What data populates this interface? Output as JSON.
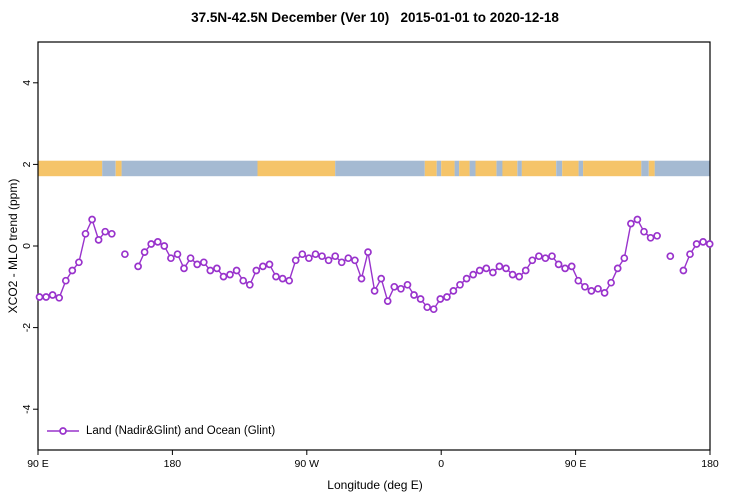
{
  "chart_data": {
    "type": "line",
    "title": "37.5N-42.5N December (Ver 10)   2015-01-01 to 2020-12-18",
    "xlabel": "Longitude (deg E)",
    "ylabel": "XCO2 - MLO trend (ppm)",
    "legend": [
      "Land (Nadir&Glint) and Ocean (Glint)"
    ],
    "series_color": "#9933cc",
    "marker": "open-circle",
    "grid": false,
    "legend_position": "bottom-left-inside",
    "xlim": [
      90,
      540
    ],
    "ylim": [
      -5,
      5
    ],
    "xticks": [
      {
        "value": 90,
        "label": "90 E"
      },
      {
        "value": 180,
        "label": "180"
      },
      {
        "value": 270,
        "label": "90 W"
      },
      {
        "value": 360,
        "label": "0"
      },
      {
        "value": 450,
        "label": "90 E"
      },
      {
        "value": 540,
        "label": "180"
      }
    ],
    "yticks": [
      {
        "value": -4,
        "label": "-4"
      },
      {
        "value": -2,
        "label": "-2"
      },
      {
        "value": 0,
        "label": "0"
      },
      {
        "value": 2,
        "label": "2"
      },
      {
        "value": 4,
        "label": "4"
      }
    ],
    "land_ocean_band": {
      "y_center": 1.9,
      "height": 0.38,
      "land_color": "#f5c469",
      "ocean_color": "#a5bad2",
      "segments": [
        [
          90,
          133,
          "land"
        ],
        [
          133,
          142,
          "ocean"
        ],
        [
          142,
          146,
          "land"
        ],
        [
          146,
          237,
          "ocean"
        ],
        [
          237,
          289,
          "land"
        ],
        [
          289,
          349,
          "ocean"
        ],
        [
          349,
          357,
          "land"
        ],
        [
          357,
          360,
          "ocean"
        ],
        [
          360,
          369,
          "land"
        ],
        [
          369,
          372,
          "ocean"
        ],
        [
          372,
          379,
          "land"
        ],
        [
          379,
          383,
          "ocean"
        ],
        [
          383,
          397,
          "land"
        ],
        [
          397,
          401,
          "ocean"
        ],
        [
          401,
          411,
          "land"
        ],
        [
          411,
          414,
          "ocean"
        ],
        [
          414,
          437,
          "land"
        ],
        [
          437,
          441,
          "ocean"
        ],
        [
          441,
          452,
          "land"
        ],
        [
          452,
          455,
          "ocean"
        ],
        [
          455,
          494,
          "land"
        ],
        [
          494,
          499,
          "ocean"
        ],
        [
          499,
          503,
          "land"
        ],
        [
          503,
          540,
          "ocean"
        ]
      ]
    },
    "points": [
      [
        91,
        -1.25
      ],
      [
        95.4,
        -1.25
      ],
      [
        99.8,
        -1.2
      ],
      [
        104.2,
        -1.27
      ],
      [
        108.6,
        -0.85
      ],
      [
        113,
        -0.6
      ],
      [
        117.4,
        -0.4
      ],
      [
        121.8,
        0.3
      ],
      [
        126.2,
        0.65
      ],
      [
        130.6,
        0.15
      ],
      [
        135,
        0.35
      ],
      [
        139.4,
        0.3
      ],
      [
        143.8,
        null
      ],
      [
        148.2,
        -0.2
      ],
      [
        152.6,
        null
      ],
      [
        157,
        -0.5
      ],
      [
        161.4,
        -0.15
      ],
      [
        165.8,
        0.05
      ],
      [
        170.2,
        0.1
      ],
      [
        174.6,
        0
      ],
      [
        179,
        -0.3
      ],
      [
        183.4,
        -0.2
      ],
      [
        187.8,
        -0.55
      ],
      [
        192.2,
        -0.3
      ],
      [
        196.6,
        -0.45
      ],
      [
        201,
        -0.4
      ],
      [
        205.4,
        -0.6
      ],
      [
        209.8,
        -0.55
      ],
      [
        214.2,
        -0.75
      ],
      [
        218.6,
        -0.7
      ],
      [
        223,
        -0.6
      ],
      [
        227.4,
        -0.85
      ],
      [
        231.8,
        -0.95
      ],
      [
        236.2,
        -0.6
      ],
      [
        240.6,
        -0.5
      ],
      [
        245,
        -0.45
      ],
      [
        249.4,
        -0.75
      ],
      [
        253.8,
        -0.8
      ],
      [
        258.2,
        -0.85
      ],
      [
        262.6,
        -0.35
      ],
      [
        267,
        -0.2
      ],
      [
        271.4,
        -0.3
      ],
      [
        275.8,
        -0.2
      ],
      [
        280.2,
        -0.25
      ],
      [
        284.6,
        -0.35
      ],
      [
        289,
        -0.25
      ],
      [
        293.4,
        -0.4
      ],
      [
        297.8,
        -0.3
      ],
      [
        302.2,
        -0.35
      ],
      [
        306.6,
        -0.8
      ],
      [
        311,
        -0.15
      ],
      [
        315.4,
        -1.1
      ],
      [
        319.8,
        -0.8
      ],
      [
        324.2,
        -1.35
      ],
      [
        328.6,
        -1
      ],
      [
        333,
        -1.05
      ],
      [
        337.4,
        -0.95
      ],
      [
        341.8,
        -1.2
      ],
      [
        346.2,
        -1.3
      ],
      [
        350.6,
        -1.5
      ],
      [
        355,
        -1.55
      ],
      [
        359.4,
        -1.3
      ],
      [
        363.8,
        -1.25
      ],
      [
        368.2,
        -1.1
      ],
      [
        372.6,
        -0.95
      ],
      [
        377,
        -0.8
      ],
      [
        381.4,
        -0.7
      ],
      [
        385.8,
        -0.6
      ],
      [
        390.2,
        -0.55
      ],
      [
        394.6,
        -0.65
      ],
      [
        399,
        -0.5
      ],
      [
        403.4,
        -0.55
      ],
      [
        407.8,
        -0.7
      ],
      [
        412.2,
        -0.75
      ],
      [
        416.6,
        -0.6
      ],
      [
        421,
        -0.35
      ],
      [
        425.4,
        -0.25
      ],
      [
        429.8,
        -0.3
      ],
      [
        434.2,
        -0.25
      ],
      [
        438.6,
        -0.45
      ],
      [
        443,
        -0.55
      ],
      [
        447.4,
        -0.5
      ],
      [
        451.8,
        -0.85
      ],
      [
        456.2,
        -1
      ],
      [
        460.6,
        -1.1
      ],
      [
        465,
        -1.05
      ],
      [
        469.4,
        -1.15
      ],
      [
        473.8,
        -0.9
      ],
      [
        478.2,
        -0.55
      ],
      [
        482.6,
        -0.3
      ],
      [
        487,
        0.55
      ],
      [
        491.4,
        0.65
      ],
      [
        495.8,
        0.35
      ],
      [
        500.2,
        0.2
      ],
      [
        504.6,
        0.25
      ],
      [
        509,
        null
      ],
      [
        513.4,
        -0.25
      ],
      [
        517.8,
        null
      ],
      [
        522.2,
        -0.6
      ],
      [
        526.6,
        -0.2
      ],
      [
        531,
        0.05
      ],
      [
        535.4,
        0.1
      ],
      [
        539.8,
        0.05
      ]
    ]
  }
}
